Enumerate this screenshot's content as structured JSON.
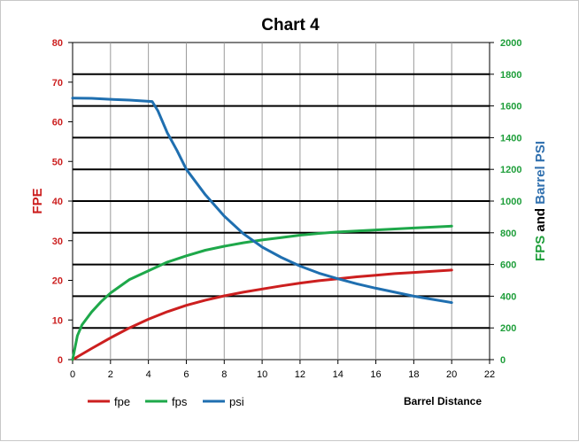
{
  "chart_data": {
    "type": "line",
    "title": "Chart 4",
    "xlabel": "Barrel Distance",
    "ylabel_left": "FPE",
    "ylabel_right_parts": [
      {
        "text": "FPS",
        "color": "#1e9e3a"
      },
      {
        "text": " and ",
        "color": "#000000"
      },
      {
        "text": "Barrel PSI",
        "color": "#2f6fae"
      }
    ],
    "xlim": [
      0,
      22
    ],
    "ylim_left": [
      0,
      80
    ],
    "ylim_right": [
      0,
      2000
    ],
    "x_ticks": [
      "0",
      "2",
      "4",
      "6",
      "8",
      "10",
      "12",
      "14",
      "16",
      "18",
      "20",
      "22"
    ],
    "y_left_ticks": [
      "0",
      "10",
      "20",
      "30",
      "40",
      "50",
      "60",
      "70",
      "80"
    ],
    "y_right_ticks": [
      "0",
      "200",
      "400",
      "600",
      "800",
      "1000",
      "1200",
      "1400",
      "1600",
      "1800",
      "2000"
    ],
    "grid": true,
    "legend_position": "bottom-left",
    "series": [
      {
        "name": "fpe",
        "axis": "left",
        "color": "#cc1f1f",
        "points": [
          [
            0,
            0
          ],
          [
            1,
            2.8
          ],
          [
            2,
            5.5
          ],
          [
            3,
            8.0
          ],
          [
            4,
            10.2
          ],
          [
            5,
            12.1
          ],
          [
            6,
            13.7
          ],
          [
            7,
            15.0
          ],
          [
            8,
            16.1
          ],
          [
            9,
            17.0
          ],
          [
            10,
            17.8
          ],
          [
            11,
            18.6
          ],
          [
            12,
            19.3
          ],
          [
            13,
            19.9
          ],
          [
            14,
            20.4
          ],
          [
            15,
            20.9
          ],
          [
            16,
            21.3
          ],
          [
            17,
            21.7
          ],
          [
            18,
            22.0
          ],
          [
            19,
            22.3
          ],
          [
            20,
            22.6
          ]
        ]
      },
      {
        "name": "fps",
        "axis": "right",
        "color": "#1ea84a",
        "points": [
          [
            0,
            0
          ],
          [
            0.25,
            150
          ],
          [
            0.5,
            220
          ],
          [
            1,
            300
          ],
          [
            1.5,
            365
          ],
          [
            2,
            420
          ],
          [
            3,
            505
          ],
          [
            4,
            560
          ],
          [
            5,
            615
          ],
          [
            6,
            655
          ],
          [
            7,
            690
          ],
          [
            8,
            715
          ],
          [
            9,
            737
          ],
          [
            10,
            755
          ],
          [
            11,
            770
          ],
          [
            12,
            785
          ],
          [
            13,
            796
          ],
          [
            14,
            805
          ],
          [
            15,
            812
          ],
          [
            16,
            818
          ],
          [
            17,
            824
          ],
          [
            18,
            830
          ],
          [
            19,
            836
          ],
          [
            20,
            842
          ]
        ]
      },
      {
        "name": "psi",
        "axis": "right",
        "color": "#1f6fb0",
        "points": [
          [
            0,
            1650
          ],
          [
            1,
            1648
          ],
          [
            2,
            1642
          ],
          [
            3,
            1637
          ],
          [
            4.2,
            1628
          ],
          [
            4.5,
            1570
          ],
          [
            5,
            1430
          ],
          [
            5.5,
            1320
          ],
          [
            6,
            1200
          ],
          [
            7,
            1040
          ],
          [
            8,
            905
          ],
          [
            9,
            795
          ],
          [
            10,
            710
          ],
          [
            11,
            645
          ],
          [
            12,
            590
          ],
          [
            13,
            545
          ],
          [
            14,
            510
          ],
          [
            15,
            478
          ],
          [
            16,
            450
          ],
          [
            17,
            425
          ],
          [
            18,
            400
          ],
          [
            19,
            380
          ],
          [
            20,
            360
          ]
        ]
      }
    ]
  }
}
